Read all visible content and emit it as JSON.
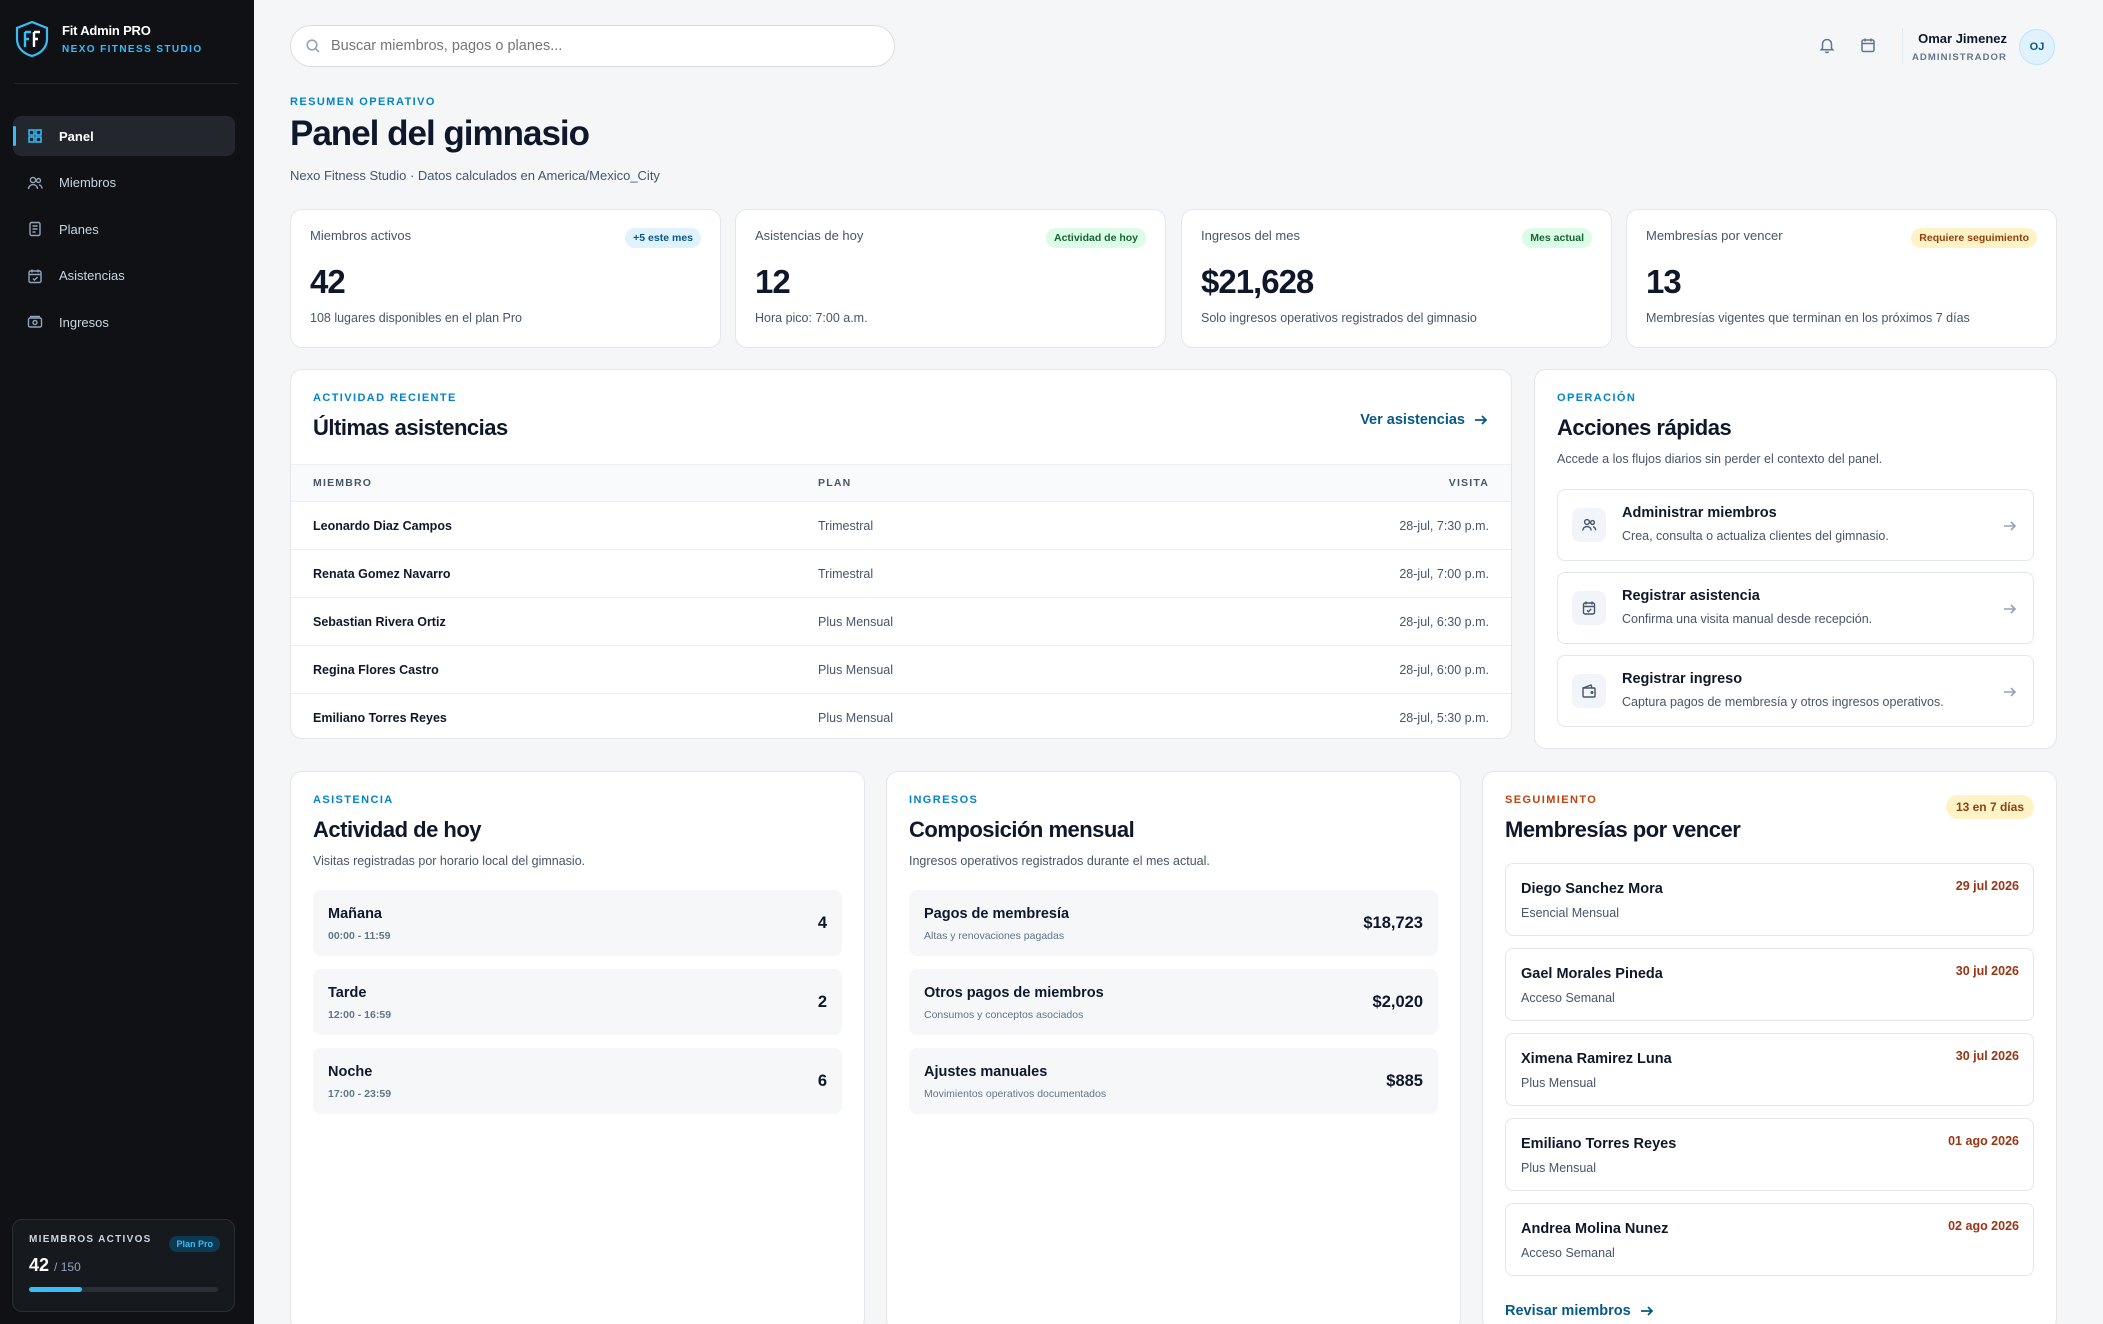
{
  "brand": {
    "title": "Fit Admin PRO",
    "subtitle": "NEXO FITNESS STUDIO",
    "accent": "#38bdf8"
  },
  "sidebar": {
    "items": [
      {
        "label": "Panel",
        "icon": "grid-icon",
        "active": true
      },
      {
        "label": "Miembros",
        "icon": "users-icon",
        "active": false
      },
      {
        "label": "Planes",
        "icon": "document-icon",
        "active": false
      },
      {
        "label": "Asistencias",
        "icon": "calendar-check-icon",
        "active": false
      },
      {
        "label": "Ingresos",
        "icon": "cash-icon",
        "active": false
      }
    ],
    "summary": {
      "label": "MIEMBROS ACTIVOS",
      "badge": "Plan Pro",
      "count": "42",
      "capacity": "/ 150",
      "progress_fraction": 0.28
    }
  },
  "search": {
    "placeholder": "Buscar miembros, pagos o planes..."
  },
  "user": {
    "name": "Omar Jimenez",
    "role": "ADMINISTRADOR",
    "initials": "OJ"
  },
  "header": {
    "eyebrow": "RESUMEN OPERATIVO",
    "title": "Panel del gimnasio",
    "subtitle": "Nexo Fitness Studio · Datos calculados en America/Mexico_City"
  },
  "kpis": [
    {
      "label": "Miembros activos",
      "badge": "+5 este mes",
      "value": "42",
      "hint": "108 lugares disponibles en el plan Pro"
    },
    {
      "label": "Asistencias de hoy",
      "badge": "Actividad de hoy",
      "value": "12",
      "hint": "Hora pico: 7:00 a.m."
    },
    {
      "label": "Ingresos del mes",
      "badge": "Mes actual",
      "value": "$21,628",
      "hint": "Solo ingresos operativos registrados del gimnasio"
    },
    {
      "label": "Membresías por vencer",
      "badge": "Requiere seguimiento",
      "value": "13",
      "hint": "Membresías vigentes que terminan en los próximos 7 días"
    }
  ],
  "activity": {
    "eyebrow": "ACTIVIDAD RECIENTE",
    "title": "Últimas asistencias",
    "link": "Ver asistencias",
    "columns": [
      "MIEMBRO",
      "PLAN",
      "VISITA"
    ],
    "rows": [
      {
        "member": "Leonardo Diaz Campos",
        "plan": "Trimestral",
        "visit": "28-jul, 7:30 p.m."
      },
      {
        "member": "Renata Gomez Navarro",
        "plan": "Trimestral",
        "visit": "28-jul, 7:00 p.m."
      },
      {
        "member": "Sebastian Rivera Ortiz",
        "plan": "Plus Mensual",
        "visit": "28-jul, 6:30 p.m."
      },
      {
        "member": "Regina Flores Castro",
        "plan": "Plus Mensual",
        "visit": "28-jul, 6:00 p.m."
      },
      {
        "member": "Emiliano Torres Reyes",
        "plan": "Plus Mensual",
        "visit": "28-jul, 5:30 p.m."
      }
    ]
  },
  "quick_actions": {
    "eyebrow": "OPERACIÓN",
    "title": "Acciones rápidas",
    "description": "Accede a los flujos diarios sin perder el contexto del panel.",
    "items": [
      {
        "title": "Administrar miembros",
        "desc": "Crea, consulta o actualiza clientes del gimnasio.",
        "icon": "users-icon"
      },
      {
        "title": "Registrar asistencia",
        "desc": "Confirma una visita manual desde recepción.",
        "icon": "calendar-check-icon"
      },
      {
        "title": "Registrar ingreso",
        "desc": "Captura pagos de membresía y otros ingresos operativos.",
        "icon": "wallet-icon"
      }
    ]
  },
  "today": {
    "eyebrow": "ASISTENCIA",
    "title": "Actividad de hoy",
    "description": "Visitas registradas por horario local del gimnasio.",
    "slots": [
      {
        "name": "Mañana",
        "range": "00:00 - 11:59",
        "count": "4"
      },
      {
        "name": "Tarde",
        "range": "12:00 - 16:59",
        "count": "2"
      },
      {
        "name": "Noche",
        "range": "17:00 - 23:59",
        "count": "6"
      }
    ]
  },
  "income": {
    "eyebrow": "INGRESOS",
    "title": "Composición mensual",
    "description": "Ingresos operativos registrados durante el mes actual.",
    "items": [
      {
        "name": "Pagos de membresía",
        "detail": "Altas y renovaciones pagadas",
        "amount": "$18,723"
      },
      {
        "name": "Otros pagos de miembros",
        "detail": "Consumos y conceptos asociados",
        "amount": "$2,020"
      },
      {
        "name": "Ajustes manuales",
        "detail": "Movimientos operativos documentados",
        "amount": "$885"
      }
    ]
  },
  "expiring": {
    "eyebrow": "SEGUIMIENTO",
    "title": "Membresías por vencer",
    "badge": "13 en 7 días",
    "link": "Revisar miembros",
    "items": [
      {
        "name": "Diego Sanchez Mora",
        "plan": "Esencial Mensual",
        "date": "29 jul 2026"
      },
      {
        "name": "Gael Morales Pineda",
        "plan": "Acceso Semanal",
        "date": "30 jul 2026"
      },
      {
        "name": "Ximena Ramirez Luna",
        "plan": "Plus Mensual",
        "date": "30 jul 2026"
      },
      {
        "name": "Emiliano Torres Reyes",
        "plan": "Plus Mensual",
        "date": "01 ago 2026"
      },
      {
        "name": "Andrea Molina Nunez",
        "plan": "Acceso Semanal",
        "date": "02 ago 2026"
      }
    ]
  }
}
